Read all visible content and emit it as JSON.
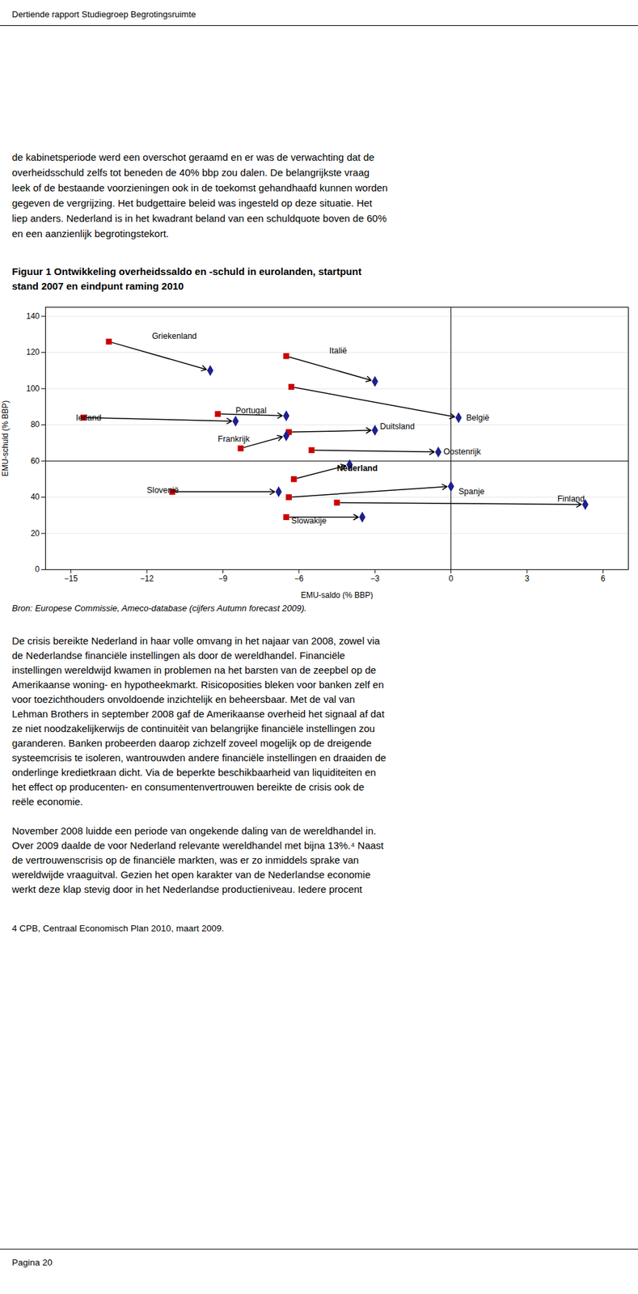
{
  "header": "Dertiende rapport Studiegroep Begrotingsruimte",
  "text_above": [
    "de kabinetsperiode werd een overschot geraamd en er was de verwachting dat de",
    "overheidsschuld zelfs tot beneden de 40% bbp zou dalen. De belangrijkste vraag",
    "leek of de bestaande voorzieningen ook in de toekomst gehandhaafd kunnen worden",
    "gegeven de vergrijzing. Het budgettaire beleid was ingesteld op deze situatie. Het",
    "liep anders. Nederland is in het kwadrant beland van een schuldquote boven de 60%",
    "en een aanzienlijk begrotingstekort."
  ],
  "chart_data": {
    "type": "arrow",
    "title": [
      "Figuur 1  Ontwikkeling overheidssaldo en -schuld in eurolanden, startpunt",
      "stand 2007 en eindpunt raming 2010"
    ],
    "caption": "Bron: Europese Commissie, Ameco-database (cijfers Autumn forecast 2009).",
    "xlabel": "EMU-saldo (% BBP)",
    "ylabel": "EMU-schuld (% BBP)",
    "xlim": [
      -16,
      7
    ],
    "ylim": [
      0,
      145
    ],
    "xticks": [
      -15,
      -12,
      -9,
      -6,
      -3,
      0,
      3,
      6
    ],
    "yticks": [
      0,
      20,
      40,
      60,
      80,
      100,
      120,
      140
    ],
    "grid": true,
    "hline_y": 60,
    "vline_x": 0,
    "line_color": "black",
    "series": [
      {
        "color": "#CC0000",
        "marker": "square",
        "x": [
          -13.5,
          -6.5,
          -6.3,
          -14.5,
          -9.2,
          -8.3,
          -6.4,
          -5.5,
          -6.2,
          -11.0,
          -6.4,
          -6.5,
          -4.5
        ],
        "values": [
          126,
          118,
          101,
          84,
          86,
          67,
          76,
          66,
          50,
          43,
          40,
          29,
          37
        ]
      },
      {
        "color": "#1F1F8F",
        "marker": "diamond",
        "x": [
          -9.5,
          -3.0,
          0.3,
          -8.5,
          -6.5,
          -6.5,
          -3.0,
          -0.5,
          -4.0,
          -6.8,
          0.0,
          -3.5,
          5.3
        ],
        "values": [
          110,
          104,
          84,
          82,
          85,
          74,
          77,
          65,
          58,
          43,
          46,
          29,
          36
        ]
      }
    ],
    "annotations": [
      {
        "text": "Griekenland",
        "x": -11.8,
        "y": 129,
        "bold": false
      },
      {
        "text": "Italië",
        "x": -4.8,
        "y": 121,
        "bold": false
      },
      {
        "text": "België",
        "x": 0.6,
        "y": 84,
        "bold": false
      },
      {
        "text": "Ierland",
        "x": -14.8,
        "y": 84,
        "bold": false
      },
      {
        "text": "Portugal",
        "x": -8.5,
        "y": 88,
        "bold": false
      },
      {
        "text": "Frankrijk",
        "x": -9.2,
        "y": 72,
        "bold": false
      },
      {
        "text": "Duitsland",
        "x": -2.8,
        "y": 79,
        "bold": false
      },
      {
        "text": "Oostenrijk",
        "x": -0.3,
        "y": 65,
        "bold": false
      },
      {
        "text": "Nederland",
        "x": -4.5,
        "y": 56,
        "bold": true
      },
      {
        "text": "Slovenië",
        "x": -12.0,
        "y": 44,
        "bold": false
      },
      {
        "text": "Spanje",
        "x": 0.3,
        "y": 43,
        "bold": false
      },
      {
        "text": "Slowakije",
        "x": -6.3,
        "y": 27,
        "bold": false
      },
      {
        "text": "Finland",
        "x": 4.2,
        "y": 39,
        "bold": false
      }
    ]
  },
  "text_below": [
    "De crisis bereikte Nederland in haar volle omvang in het najaar van 2008, zowel via",
    "de Nederlandse financiële instellingen als door de wereldhandel. Financiële",
    "instellingen wereldwijd kwamen in problemen na het barsten van de zeepbel op de",
    "Amerikaanse woning- en hypotheekmarkt. Risicoposities bleken voor banken zelf en",
    "voor toezichthouders onvoldoende inzichtelijk en beheersbaar. Met de val van",
    "Lehman Brothers in september 2008 gaf de Amerikaanse overheid het signaal af dat",
    "ze niet noodzakelijkerwijs de continuitèit van belangrijke financiële instellingen zou",
    "garanderen. Banken probeerden daarop zichzelf zoveel mogelijk op de dreigende",
    "systeemcrisis te isoleren, wantrouwden andere financiële instellingen en draaiden de",
    "onderlinge kredietkraan dicht. Via de beperkte beschikbaarheid van liquiditeiten en",
    "het effect op producenten- en consumentenvertrouwen bereikte de crisis ook de",
    "reële economie.",
    "November 2008 luidde een periode van ongekende daling van de wereldhandel in.",
    "Over 2009 daalde de voor Nederland relevante wereldhandel met bijna 13%.⁴ Naast",
    "de vertrouwenscrisis op de financiële markten, was er zo inmiddels sprake van",
    "wereldwijde vraaguitval. Gezien het open karakter van de Nederlandse economie",
    "werkt deze klap stevig door in het Nederlandse productieniveau. Iedere procent"
  ],
  "footnote": "4 CPB, Centraal Economisch Plan 2010, maart 2009.",
  "footer": "Pagina 20"
}
